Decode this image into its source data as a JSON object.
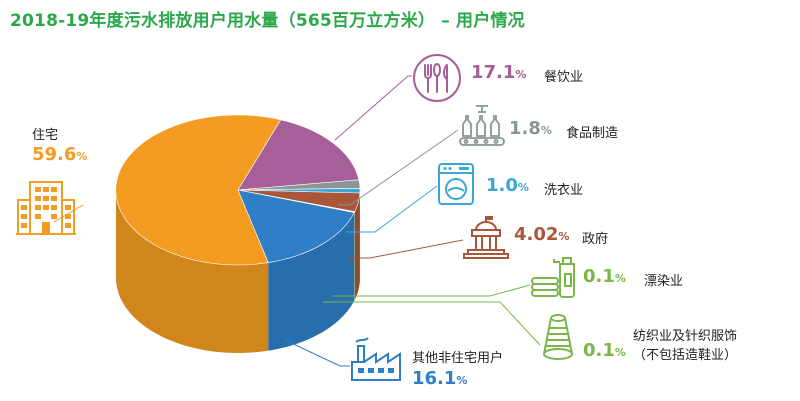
{
  "title": "2018-19年度污水排放用户用水量（565百万立方米） – 用户情况",
  "chart_data": {
    "type": "pie",
    "title": "2018-19年度污水排放用户用水量（565百万立方米） – 用户情况",
    "slices": [
      {
        "label": "住宅",
        "value": 59.6,
        "display": "59.6",
        "color": "#f39c21"
      },
      {
        "label": "餐饮业",
        "value": 17.1,
        "display": "17.1",
        "color": "#a65f98"
      },
      {
        "label": "食品制造",
        "value": 1.8,
        "display": "1.8",
        "color": "#8a9694"
      },
      {
        "label": "洗衣业",
        "value": 1.0,
        "display": "1.0",
        "color": "#3ba5d6"
      },
      {
        "label": "政府",
        "value": 4.02,
        "display": "4.02",
        "color": "#a9563a"
      },
      {
        "label": "漂染业",
        "value": 0.1,
        "display": "0.1",
        "color": "#7ab648"
      },
      {
        "label": "纺织业及针织服饰（不包括造鞋业）",
        "value": 0.1,
        "display": "0.1",
        "color": "#b8c932"
      },
      {
        "label": "其他非住宅用户",
        "value": 16.1,
        "display": "16.1",
        "color": "#2f7fc8"
      }
    ],
    "unit": "%"
  },
  "labels": {
    "residential": {
      "name": "住宅",
      "pct": "59.6"
    },
    "catering": {
      "name": "餐饮业",
      "pct": "17.1"
    },
    "food": {
      "name": "食品制造",
      "pct": "1.8"
    },
    "laundry": {
      "name": "洗衣业",
      "pct": "1.0"
    },
    "government": {
      "name": "政府",
      "pct": "4.02"
    },
    "dyeing": {
      "name": "漂染业",
      "pct": "0.1"
    },
    "textile": {
      "name1": "纺织业及针织服饰",
      "name2": "（不包括造鞋业）",
      "pct": "0.1"
    },
    "other": {
      "name": "其他非住宅用户",
      "pct": "16.1"
    },
    "unit": "%"
  },
  "colors": {
    "title": "#2aa84a",
    "residential": "#f39c21",
    "catering": "#a65f98",
    "food": "#8a9694",
    "laundry": "#3ba5d6",
    "government": "#a9563a",
    "dyeing": "#7ab648",
    "textile": "#b8c932",
    "other": "#2f7fc8"
  },
  "icons": [
    "building-icon",
    "cutlery-icon",
    "bottles-icon",
    "washing-machine-icon",
    "government-building-icon",
    "detergent-icon",
    "yarn-spool-icon",
    "factory-icon"
  ]
}
